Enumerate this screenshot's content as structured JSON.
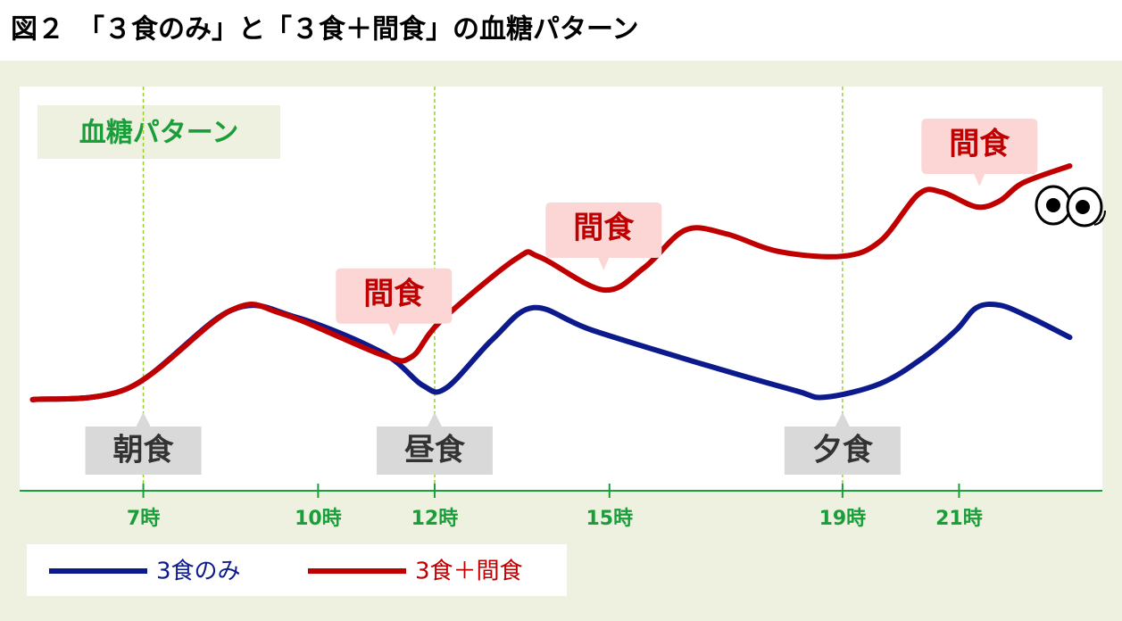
{
  "chart_data": {
    "type": "line",
    "title": "図２　「３食のみ」と「３食＋間食」の血糖パターン",
    "subtitle": "血糖パターン",
    "xlim": [
      5,
      23
    ],
    "ylim": [
      0,
      100
    ],
    "xticks": [
      {
        "value": 7,
        "label": "7時"
      },
      {
        "value": 10,
        "label": "10時"
      },
      {
        "value": 12,
        "label": "12時"
      },
      {
        "value": 15,
        "label": "15時"
      },
      {
        "value": 19,
        "label": "19時"
      },
      {
        "value": 21,
        "label": "21時"
      }
    ],
    "series": [
      {
        "name": "3食のみ",
        "color": "#0d1a8c",
        "x": [
          5.1,
          6.75,
          8.5,
          9.6,
          11.1,
          11.8,
          12.2,
          13.0,
          13.7,
          14.7,
          16.7,
          18.2,
          18.7,
          19.65,
          20.4,
          20.95,
          21.3,
          21.7,
          22.2,
          22.9
        ],
        "values": [
          22.7,
          25.6,
          44.9,
          43.3,
          34.4,
          26.2,
          25.6,
          37.8,
          45.6,
          40,
          31.1,
          24.9,
          23.3,
          26.7,
          33.3,
          40,
          45.6,
          46.2,
          43.3,
          38.2
        ]
      },
      {
        "name": "3食＋間食",
        "color": "#c00000",
        "x": [
          5.1,
          6.75,
          8.5,
          9.4,
          11.1,
          11.6,
          12.1,
          13.4,
          13.8,
          14.9,
          15.6,
          16.3,
          17.0,
          17.9,
          19.0,
          19.65,
          20.3,
          20.7,
          21.3,
          21.7,
          22.1,
          22.9
        ],
        "values": [
          22.7,
          25.6,
          44.9,
          44,
          33.8,
          33.3,
          42.2,
          57.8,
          58.2,
          50,
          55.6,
          64.9,
          64,
          59.6,
          58.4,
          62.2,
          73.8,
          74.4,
          70.7,
          72.2,
          76.7,
          80.9
        ]
      }
    ],
    "meals": [
      {
        "label": "朝食",
        "x": 7
      },
      {
        "label": "昼食",
        "x": 12
      },
      {
        "label": "夕食",
        "x": 19
      }
    ],
    "snacks": [
      {
        "label": "間食",
        "x": 11.3
      },
      {
        "label": "間食",
        "x": 14.9
      },
      {
        "label": "間食",
        "x": 21.35
      }
    ]
  }
}
